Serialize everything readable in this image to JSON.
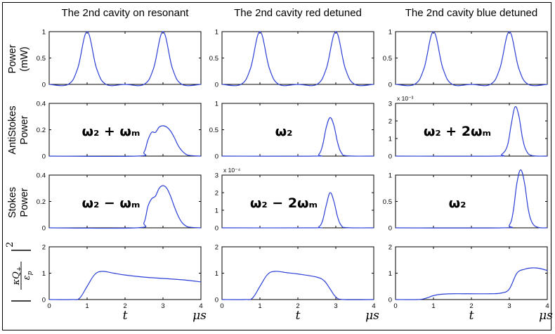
{
  "columns": [
    {
      "title": "The 2nd cavity on resonant"
    },
    {
      "title": "The 2nd cavity red detuned"
    },
    {
      "title": "The 2nd cavity blue detuned"
    }
  ],
  "rows": [
    {
      "label_line1": "Power",
      "label_line2": "(mW)"
    },
    {
      "label_line1": "AntiStokes",
      "label_line2": "Power"
    },
    {
      "label_line1": "Stokes",
      "label_line2": "Power"
    },
    {
      "label_line1": "",
      "label_line2": ""
    }
  ],
  "row4_label_math": "|κQ₊/ε_p|²",
  "x_axis": {
    "ticks": [
      "0",
      "1",
      "2",
      "3",
      "4"
    ],
    "var_label": "t",
    "unit_label": "μs"
  },
  "colors": {
    "line": "#2b3fd6",
    "axis": "#000000"
  },
  "chart_data": [
    {
      "type": "line",
      "row": 0,
      "col": 0,
      "ylim": [
        0,
        1
      ],
      "yticks": [
        "0",
        "0.5",
        "1"
      ],
      "annotation": "",
      "scale": "",
      "series": [
        {
          "x": [
            0,
            0.5,
            0.75,
            1,
            1.25,
            1.5,
            2,
            2.5,
            2.75,
            3,
            3.25,
            3.5,
            4
          ],
          "y": [
            0,
            0,
            0.3,
            1,
            0.3,
            0,
            0,
            0,
            0.3,
            1,
            0.3,
            0,
            0
          ]
        }
      ]
    },
    {
      "type": "line",
      "row": 0,
      "col": 1,
      "ylim": [
        0,
        1
      ],
      "yticks": [
        "0",
        "0.5",
        "1"
      ],
      "annotation": "",
      "scale": "",
      "series": [
        {
          "x": [
            0,
            0.5,
            0.75,
            1,
            1.25,
            1.5,
            2,
            2.5,
            2.75,
            3,
            3.25,
            3.5,
            4
          ],
          "y": [
            0,
            0,
            0.3,
            1,
            0.3,
            0,
            0,
            0,
            0.3,
            1,
            0.3,
            0,
            0
          ]
        }
      ]
    },
    {
      "type": "line",
      "row": 0,
      "col": 2,
      "ylim": [
        0,
        1
      ],
      "yticks": [
        "0",
        "0.5",
        "1"
      ],
      "annotation": "",
      "scale": "",
      "series": [
        {
          "x": [
            0,
            0.5,
            0.75,
            1,
            1.25,
            1.5,
            2,
            2.5,
            2.75,
            3,
            3.25,
            3.5,
            4
          ],
          "y": [
            0,
            0,
            0.3,
            1,
            0.3,
            0,
            0,
            0,
            0.3,
            1,
            0.3,
            0,
            0
          ]
        }
      ]
    },
    {
      "type": "line",
      "row": 1,
      "col": 0,
      "ylim": [
        0,
        0.4
      ],
      "yticks": [
        "0",
        "0.2",
        "0.4"
      ],
      "annotation": "ω₂ + ωₘ",
      "scale": "",
      "series": [
        {
          "x": [
            0,
            2.3,
            2.5,
            2.6,
            2.7,
            2.8,
            2.9,
            3.0,
            3.1,
            3.2,
            3.3,
            3.4,
            3.5,
            3.6,
            3.7,
            4
          ],
          "y": [
            0,
            0,
            0.03,
            0.12,
            0.18,
            0.18,
            0.22,
            0.23,
            0.22,
            0.19,
            0.14,
            0.08,
            0.04,
            0.015,
            0.005,
            0
          ]
        }
      ]
    },
    {
      "type": "line",
      "row": 1,
      "col": 1,
      "ylim": [
        0,
        1
      ],
      "yticks": [
        "0",
        "0.5",
        "1"
      ],
      "annotation": "ω₂",
      "scale": "",
      "series": [
        {
          "x": [
            0,
            2.4,
            2.55,
            2.65,
            2.75,
            2.85,
            2.95,
            3.05,
            3.15,
            3.3,
            4
          ],
          "y": [
            0,
            0,
            0.03,
            0.2,
            0.55,
            0.73,
            0.58,
            0.25,
            0.06,
            0.005,
            0
          ]
        }
      ]
    },
    {
      "type": "line",
      "row": 1,
      "col": 2,
      "ylim": [
        0,
        3
      ],
      "yticks": [
        "0",
        "1",
        "2",
        "3"
      ],
      "annotation": "ω₂ + 2ωₘ",
      "scale": "x 10⁻³",
      "series": [
        {
          "x": [
            0,
            2.6,
            2.8,
            2.95,
            3.05,
            3.15,
            3.25,
            3.35,
            3.45,
            3.6,
            4
          ],
          "y": [
            0,
            0,
            0.1,
            0.6,
            1.8,
            2.8,
            2.3,
            1.0,
            0.3,
            0.03,
            0
          ]
        }
      ]
    },
    {
      "type": "line",
      "row": 2,
      "col": 0,
      "ylim": [
        0,
        0.4
      ],
      "yticks": [
        "0",
        "0.2",
        "0.4"
      ],
      "annotation": "ω₂ − ωₘ",
      "scale": "",
      "series": [
        {
          "x": [
            0,
            2.3,
            2.5,
            2.6,
            2.7,
            2.8,
            2.9,
            3.0,
            3.1,
            3.2,
            3.3,
            3.4,
            3.5,
            3.6,
            3.7,
            4
          ],
          "y": [
            0,
            0,
            0.04,
            0.16,
            0.22,
            0.24,
            0.3,
            0.32,
            0.3,
            0.24,
            0.16,
            0.09,
            0.04,
            0.015,
            0.005,
            0
          ]
        }
      ]
    },
    {
      "type": "line",
      "row": 2,
      "col": 1,
      "ylim": [
        0,
        3
      ],
      "yticks": [
        "0",
        "1",
        "2",
        "3"
      ],
      "annotation": "ω₂ − 2ωₘ",
      "scale": "x 10⁻⁴",
      "series": [
        {
          "x": [
            0,
            2.4,
            2.55,
            2.65,
            2.75,
            2.85,
            2.95,
            3.05,
            3.15,
            3.3,
            4
          ],
          "y": [
            0,
            0,
            0.05,
            0.4,
            1.3,
            2.0,
            1.5,
            0.6,
            0.12,
            0.01,
            0
          ]
        }
      ]
    },
    {
      "type": "line",
      "row": 2,
      "col": 2,
      "ylim": [
        0,
        1
      ],
      "yticks": [
        "0",
        "0.5",
        "1"
      ],
      "annotation": "ω₂",
      "scale": "",
      "series": [
        {
          "x": [
            0,
            2.8,
            3.0,
            3.1,
            3.2,
            3.3,
            3.4,
            3.5,
            3.6,
            3.75,
            4
          ],
          "y": [
            0,
            0,
            0.05,
            0.3,
            0.85,
            1.1,
            0.85,
            0.35,
            0.1,
            0.01,
            0
          ]
        }
      ]
    },
    {
      "type": "line",
      "row": 3,
      "col": 0,
      "ylim": [
        0,
        2
      ],
      "yticks": [
        "0",
        "1",
        "2"
      ],
      "annotation": "",
      "scale": "",
      "series": [
        {
          "x": [
            0,
            0.6,
            0.8,
            1.0,
            1.2,
            1.4,
            1.7,
            2.0,
            2.5,
            3.0,
            3.5,
            4
          ],
          "y": [
            0,
            0,
            0.05,
            0.5,
            0.95,
            1.07,
            1.0,
            0.93,
            0.85,
            0.8,
            0.75,
            0.67
          ]
        }
      ]
    },
    {
      "type": "line",
      "row": 3,
      "col": 1,
      "ylim": [
        0,
        2
      ],
      "yticks": [
        "0",
        "1",
        "2"
      ],
      "annotation": "",
      "scale": "",
      "series": [
        {
          "x": [
            0,
            0.6,
            0.8,
            1.0,
            1.2,
            1.4,
            1.7,
            2.0,
            2.5,
            2.7,
            2.85,
            3.0,
            3.2,
            4
          ],
          "y": [
            0,
            0,
            0.05,
            0.5,
            0.95,
            1.07,
            1.02,
            0.97,
            0.85,
            0.7,
            0.4,
            0.1,
            0,
            0
          ]
        }
      ]
    },
    {
      "type": "line",
      "row": 3,
      "col": 2,
      "ylim": [
        0,
        2
      ],
      "yticks": [
        "0",
        "1",
        "2"
      ],
      "annotation": "",
      "scale": "",
      "series": [
        {
          "x": [
            0,
            0.6,
            0.8,
            1.0,
            1.2,
            1.5,
            2.0,
            2.5,
            2.8,
            3.0,
            3.2,
            3.4,
            3.6,
            3.8,
            4
          ],
          "y": [
            0,
            0,
            0.05,
            0.15,
            0.2,
            0.22,
            0.22,
            0.22,
            0.25,
            0.4,
            1.0,
            1.15,
            1.2,
            1.18,
            1.1
          ]
        }
      ]
    }
  ]
}
